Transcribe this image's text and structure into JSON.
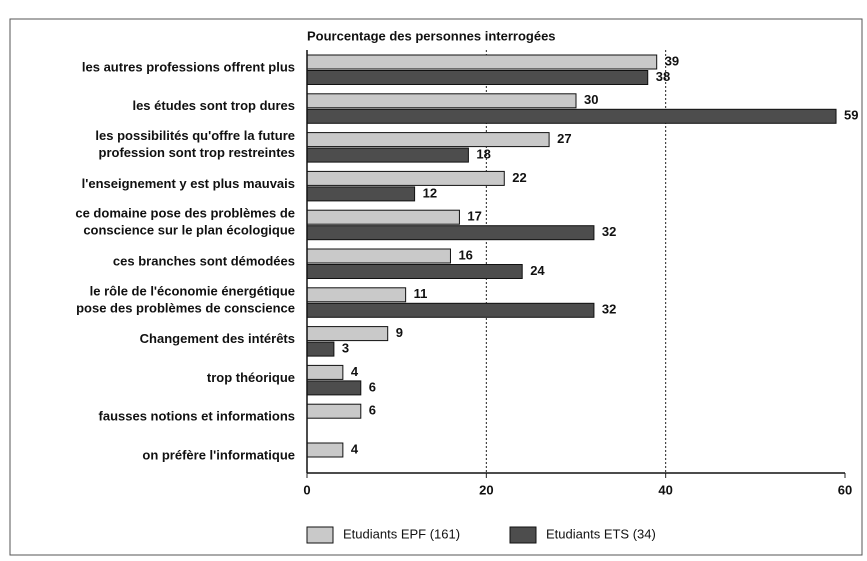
{
  "chart_data": {
    "type": "bar",
    "orientation": "horizontal",
    "title": "Pourcentage des personnes interrogées",
    "categories": [
      "les autres professions offrent plus",
      "les études sont trop dures",
      "les possibilités qu'offre la future\nprofession sont trop restreintes",
      "l'enseignement y est plus mauvais",
      "ce domaine pose des problèmes de\nconscience sur le plan écologique",
      "ces branches sont démodées",
      "le rôle de l'économie énergétique\npose des problèmes de conscience",
      "Changement des intérêts",
      "trop théorique",
      "fausses notions et informations",
      "on préfère l'informatique"
    ],
    "series": [
      {
        "name": "Etudiants EPF (161)",
        "color": "#c9c9c9",
        "values": [
          39,
          30,
          27,
          22,
          17,
          16,
          11,
          9,
          4,
          6,
          4
        ]
      },
      {
        "name": "Etudiants ETS (34)",
        "color": "#4d4d4d",
        "values": [
          38,
          59,
          18,
          12,
          32,
          24,
          32,
          3,
          6,
          null,
          null
        ]
      }
    ],
    "xlim": [
      0,
      60
    ],
    "xticks": [
      0,
      20,
      40,
      60
    ],
    "grid": true,
    "legend": "bottom"
  }
}
